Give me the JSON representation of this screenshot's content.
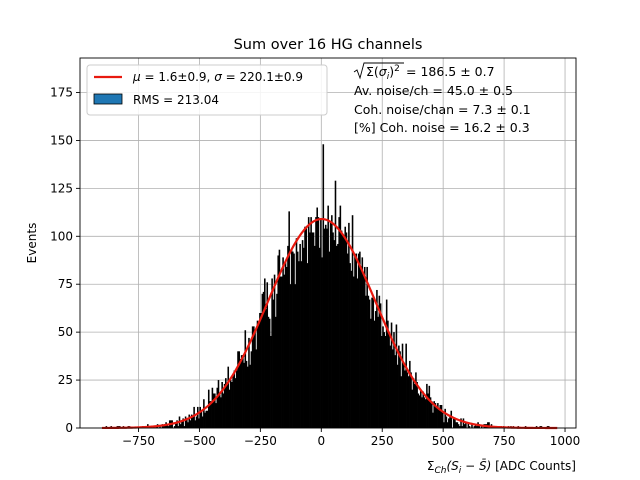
{
  "chart_data": {
    "type": "histogram",
    "title": "Sum over 16 HG channels",
    "xlabel_parts": {
      "prefix": "Σ",
      "sub": "Ch",
      "body": "(S",
      "sub2": "i",
      "mid": " − S̄)",
      "suffix": " [ADC Counts]"
    },
    "ylabel": "Events",
    "xlim": [
      -990,
      1045
    ],
    "ylim": [
      0,
      193
    ],
    "xticks": [
      -750,
      -500,
      -250,
      0,
      250,
      500,
      750,
      1000
    ],
    "xtick_labels": [
      "−750",
      "−500",
      "−250",
      "0",
      "250",
      "500",
      "750",
      "1000"
    ],
    "yticks": [
      0,
      25,
      50,
      75,
      100,
      125,
      150,
      175
    ],
    "grid": true,
    "histogram": {
      "range": [
        -900,
        970
      ],
      "bin_width": 5,
      "fill_color": "#000000",
      "peak_value": 148,
      "shape": "gaussian",
      "mean": 1.6,
      "sigma": 220.1,
      "amplitude": 109
    },
    "fit": {
      "color": "#e8190f",
      "mean": 1.6,
      "sigma": 220.1,
      "amplitude": 109
    },
    "legend": {
      "placement": "upper-left",
      "fit_label": {
        "mu_sym": "μ",
        "mu_text": " = 1.6±0.9, ",
        "sigma_sym": "σ",
        "sigma_text": " = 220.1±0.9"
      },
      "hist_label": "RMS = 213.04",
      "hist_patch_color": "#1f77b4"
    },
    "annotations": {
      "line1_value": " = 186.5 ± 0.7",
      "line2": "Av. noise/ch  = 45.0 ± 0.5",
      "line3": "Coh. noise/chan  = 7.3 ± 0.1",
      "line4": "[%] Coh. noise  = 16.2 ± 0.3"
    }
  }
}
